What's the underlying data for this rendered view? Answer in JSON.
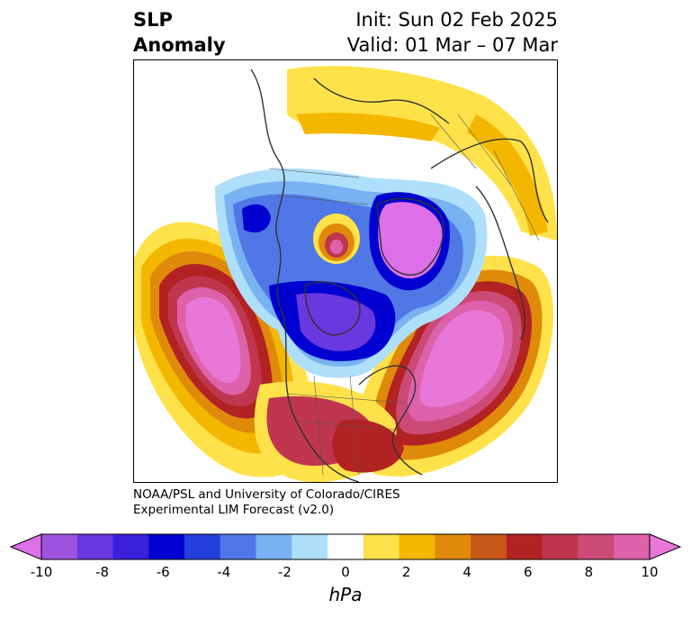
{
  "header": {
    "title_line1": "SLP",
    "title_line2": "Anomaly",
    "init_line": "Init: Sun 02 Feb 2025",
    "valid_line": "Valid: 01 Mar – 07 Mar"
  },
  "credit": {
    "line1": "NOAA/PSL and University of Colorado/CIRES",
    "line2": "Experimental LIM Forecast (v2.0)"
  },
  "colorbar": {
    "units": "hPa",
    "tick_labels": [
      "-10",
      "-8",
      "-6",
      "-4",
      "-2",
      "0",
      "2",
      "4",
      "6",
      "8",
      "10"
    ],
    "colors": [
      "#dd6fe8",
      "#9f52e0",
      "#6a38df",
      "#3a1fdb",
      "#0000d0",
      "#2340dc",
      "#4f78e6",
      "#78b2f2",
      "#aee0fb",
      "#ffffff",
      "#ffe24a",
      "#f4b700",
      "#e08a0c",
      "#c85818",
      "#b32222",
      "#c0364e",
      "#cc4a76",
      "#dd62aa",
      "#e877d8"
    ]
  }
}
